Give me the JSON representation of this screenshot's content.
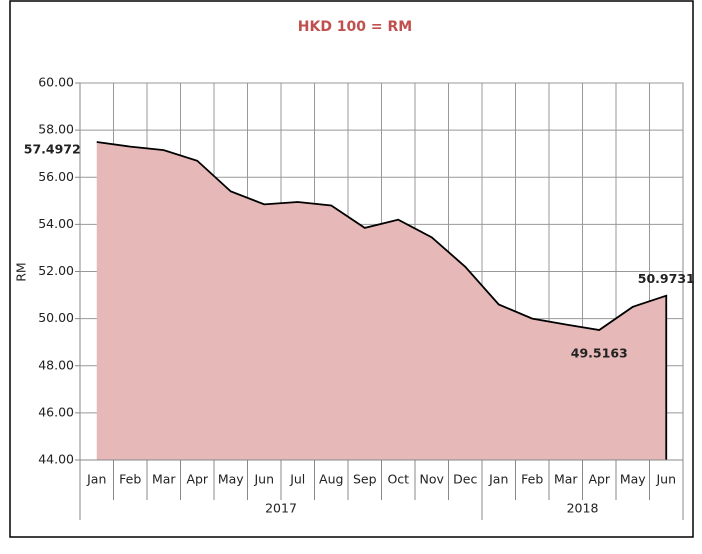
{
  "chart_data": {
    "type": "area",
    "title": "HKD 100 = RM",
    "y_label": "RM",
    "categories": [
      "Jan",
      "Feb",
      "Mar",
      "Apr",
      "May",
      "Jun",
      "Jul",
      "Aug",
      "Sep",
      "Oct",
      "Nov",
      "Dec",
      "Jan",
      "Feb",
      "Mar",
      "Apr",
      "May",
      "Jun"
    ],
    "groups": [
      {
        "label": "2017",
        "span": 12
      },
      {
        "label": "2018",
        "span": 6
      }
    ],
    "values": [
      57.4972,
      57.3,
      57.15,
      56.7,
      55.4,
      54.85,
      54.95,
      54.8,
      53.85,
      54.2,
      53.45,
      52.2,
      50.6,
      50.0,
      49.75,
      49.5163,
      50.5,
      50.9731
    ],
    "value_labels": [
      "57.4972",
      null,
      null,
      null,
      null,
      null,
      null,
      null,
      null,
      null,
      null,
      null,
      null,
      null,
      null,
      "49.5163",
      null,
      "50.9731"
    ],
    "color": "#e6b8b7",
    "line_color": "#000000",
    "title_color": "#c0504d",
    "ylim": [
      44,
      60
    ],
    "yticks": [
      {
        "value": 44,
        "label": "44.00"
      },
      {
        "value": 46,
        "label": "46.00"
      },
      {
        "value": 48,
        "label": "48.00"
      },
      {
        "value": 50,
        "label": "50.00"
      },
      {
        "value": 52,
        "label": "52.00"
      },
      {
        "value": 54,
        "label": "54.00"
      },
      {
        "value": 56,
        "label": "56.00"
      },
      {
        "value": 58,
        "label": "58.00"
      },
      {
        "value": 60,
        "label": "60.00"
      }
    ],
    "grid": true
  }
}
